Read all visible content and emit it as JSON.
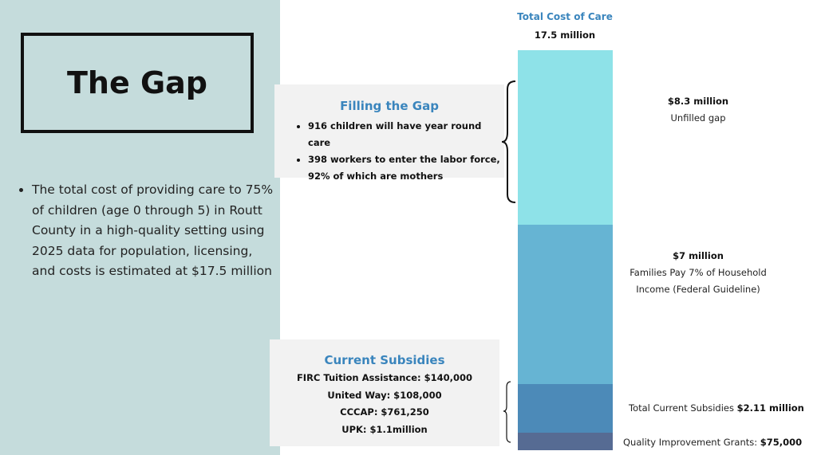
{
  "left": {
    "title": "The Gap",
    "bullet": "The total cost of providing care to 75% of children (age 0 through 5) in Routt County in a high-quality setting using 2025 data for population, licensing, and costs is estimated at $17.5 million"
  },
  "filling_gap": {
    "title": "Filling the Gap",
    "items": [
      "916 children will have year round care",
      "398 workers to enter the labor force, 92% of which are mothers"
    ]
  },
  "current_subsidies": {
    "title": "Current Subsidies",
    "lines": [
      "FIRC Tuition Assistance: $140,000",
      "United Way: $108,000",
      "CCCAP: $761,250",
      "UPK: $1.1million"
    ]
  },
  "colors": {
    "panel": "#c5dcdc",
    "accent": "#3a85bd",
    "unfilled": "#8ee2e8",
    "families": "#66b4d3",
    "subsidies": "#4c8ab8",
    "grants": "#566b93"
  },
  "chart_data": {
    "type": "bar",
    "title": "Total Cost of Care",
    "subtitle": "17.5 million",
    "total": 17.5,
    "series": [
      {
        "key": "grants",
        "value": 0.075,
        "amount": "$75,000",
        "label": "Quality Improvement Grants: "
      },
      {
        "key": "subsidies",
        "value": 2.11,
        "amount": "$2.11 million",
        "label": "Total Current Subsidies "
      },
      {
        "key": "families",
        "value": 7.0,
        "amount": "$7 million",
        "label_line1": "Families Pay 7% of Household",
        "label_line2": "Income (Federal Guideline)"
      },
      {
        "key": "unfilled",
        "value": 8.3,
        "amount": "$8.3 million",
        "label": "Unfilled gap"
      }
    ]
  }
}
